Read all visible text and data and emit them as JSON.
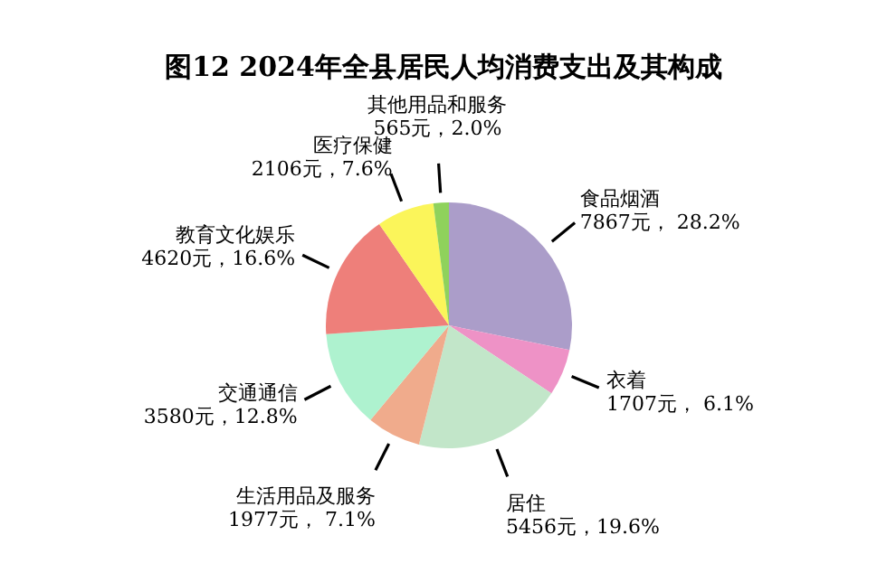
{
  "chart_data": {
    "type": "pie",
    "title": "图12  2024年全县居民人均消费支出及其构成",
    "categories": [
      "食品烟酒",
      "衣着",
      "居住",
      "生活用品及服务",
      "交通通信",
      "教育文化娱乐",
      "医疗保健",
      "其他用品和服务"
    ],
    "values": [
      7867,
      1707,
      5456,
      1977,
      3580,
      4620,
      2106,
      565
    ],
    "value_labels": [
      "7867元， 28.2%",
      "1707元， 6.1%",
      "5456元，19.6%",
      "1977元， 7.1%",
      "3580元，12.8%",
      "4620元，16.6%",
      "2106元，7.6%",
      "565元，2.0%"
    ],
    "colors": [
      "#ab9dc9",
      "#ee92c6",
      "#c2e6c9",
      "#f0ab8c",
      "#aef2cf",
      "#ee7f7a",
      "#fbf55a",
      "#8fd25c"
    ],
    "legend": false
  }
}
